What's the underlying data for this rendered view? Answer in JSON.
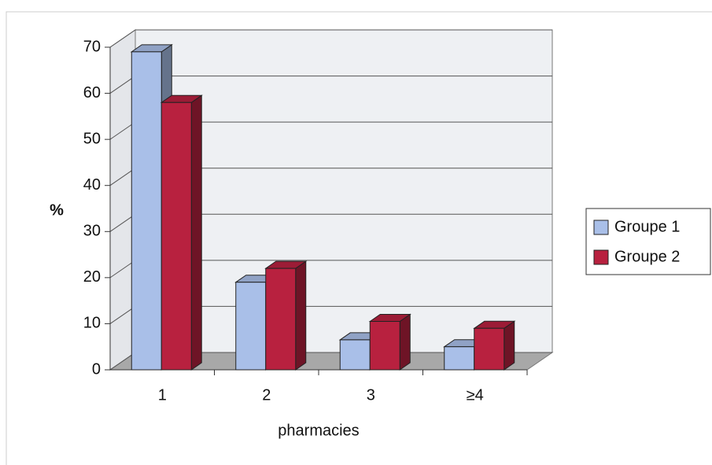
{
  "chart_data": {
    "type": "bar3d",
    "ylabel": "%",
    "xlabel": "pharmacies",
    "categories": [
      "1",
      "2",
      "3",
      "≥4"
    ],
    "series": [
      {
        "name": "Groupe 1",
        "color": "#a9bfe8",
        "values": [
          69,
          19,
          6.5,
          5
        ]
      },
      {
        "name": "Groupe 2",
        "color": "#b8213f",
        "values": [
          58,
          22,
          10.5,
          9
        ]
      }
    ],
    "ylim": [
      0,
      70
    ],
    "yticks": [
      0,
      10,
      20,
      30,
      40,
      50,
      60,
      70
    ],
    "grid": true,
    "legend": "right"
  }
}
